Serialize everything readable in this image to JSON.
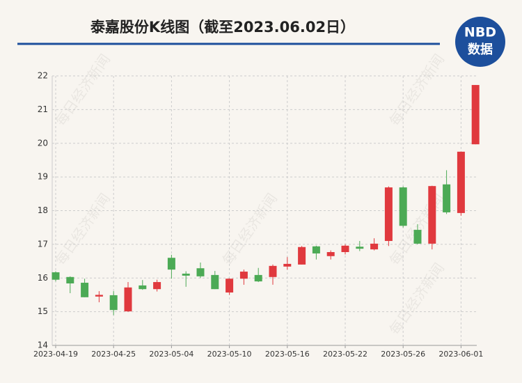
{
  "chart_data": {
    "type": "candlestick",
    "title": "泰嘉股份K线图（截至2023.06.02日）",
    "logo": {
      "top": "NBD",
      "bottom": "数据"
    },
    "watermark": "每日经济新闻",
    "categories": [
      "2023-04-19",
      null,
      null,
      null,
      "2023-04-25",
      null,
      null,
      null,
      "2023-05-04",
      null,
      null,
      null,
      "2023-05-10",
      null,
      null,
      null,
      "2023-05-16",
      null,
      null,
      null,
      "2023-05-22",
      null,
      null,
      null,
      "2023-05-26",
      null,
      null,
      null,
      "2023-06-01",
      null
    ],
    "open": [
      16.17,
      16.03,
      15.86,
      15.45,
      15.49,
      15.01,
      15.78,
      15.67,
      16.6,
      16.13,
      16.29,
      16.09,
      15.57,
      15.98,
      16.09,
      16.03,
      16.34,
      16.4,
      16.94,
      16.65,
      16.77,
      16.93,
      16.85,
      17.1,
      18.69,
      17.43,
      17.02,
      18.78,
      17.93,
      19.97
    ],
    "high": [
      16.2,
      16.05,
      15.98,
      15.61,
      15.61,
      15.88,
      15.94,
      15.95,
      16.69,
      16.2,
      16.46,
      16.21,
      15.99,
      16.25,
      16.3,
      16.4,
      16.62,
      16.95,
      16.96,
      16.82,
      17.0,
      17.1,
      17.18,
      18.72,
      18.72,
      17.6,
      18.74,
      19.2,
      19.75,
      21.73
    ],
    "low": [
      15.9,
      15.55,
      15.43,
      15.28,
      14.9,
      15.0,
      15.65,
      15.6,
      15.98,
      15.74,
      16.0,
      15.67,
      15.5,
      15.8,
      15.88,
      15.8,
      16.25,
      16.4,
      16.55,
      16.55,
      16.7,
      16.8,
      16.82,
      16.95,
      17.5,
      17.0,
      16.85,
      17.9,
      17.85,
      19.97
    ],
    "close": [
      15.95,
      15.84,
      15.43,
      15.5,
      15.05,
      15.72,
      15.67,
      15.88,
      16.25,
      16.07,
      16.05,
      15.67,
      15.98,
      16.19,
      15.9,
      16.36,
      16.42,
      16.92,
      16.73,
      16.77,
      16.96,
      16.87,
      17.02,
      18.69,
      17.55,
      17.02,
      18.73,
      17.95,
      19.75,
      21.73
    ],
    "up_color": "#e0393e",
    "down_color": "#4caa55",
    "ylim": [
      14,
      22
    ],
    "yticks": [
      14,
      15,
      16,
      17,
      18,
      19,
      20,
      21,
      22
    ],
    "grid": true
  }
}
